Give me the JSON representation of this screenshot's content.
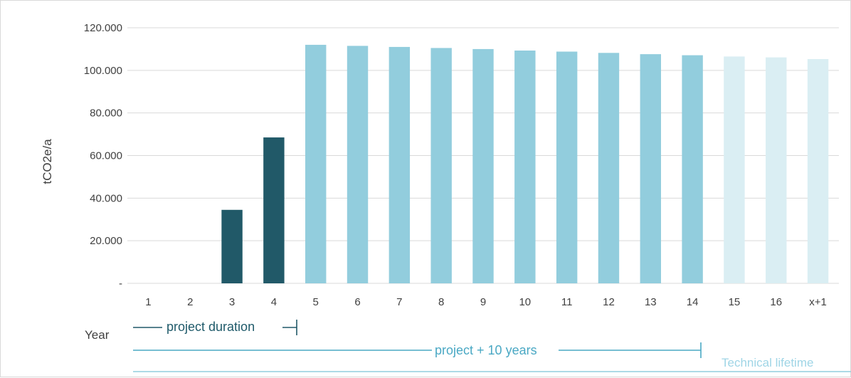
{
  "chart_data": {
    "type": "bar",
    "ylabel": "tCO2e/a",
    "xlabel": "Year",
    "ylim": [
      0,
      120000
    ],
    "yticks": [
      "-",
      "20.000",
      "40.000",
      "60.000",
      "80.000",
      "100.000",
      "120.000"
    ],
    "categories": [
      "1",
      "2",
      "3",
      "4",
      "5",
      "6",
      "7",
      "8",
      "9",
      "10",
      "11",
      "12",
      "13",
      "14",
      "15",
      "16",
      "x+1"
    ],
    "values": [
      0,
      0,
      34500,
      68500,
      112000,
      111500,
      111000,
      110500,
      110000,
      109300,
      108800,
      108200,
      107600,
      107100,
      106500,
      106100,
      105300
    ],
    "bar_groups": [
      "dark",
      "dark",
      "dark",
      "dark",
      "mid",
      "mid",
      "mid",
      "mid",
      "mid",
      "mid",
      "mid",
      "mid",
      "mid",
      "mid",
      "light",
      "light",
      "light"
    ],
    "colors": {
      "dark": "#215968",
      "mid": "#92cddd",
      "light": "#daeef3",
      "grid": "#d9d9d9"
    },
    "grid": true,
    "annotations": [
      {
        "label": "project duration",
        "style": "dark"
      },
      {
        "label": "project + 10 years",
        "style": "mid"
      },
      {
        "label": "Technical lifetime",
        "style": "light"
      }
    ]
  }
}
